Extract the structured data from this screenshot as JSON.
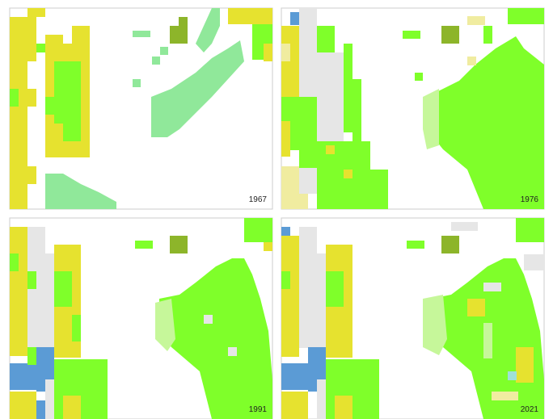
{
  "panels": [
    {
      "year": "1967"
    },
    {
      "year": "1976"
    },
    {
      "year": "1991"
    },
    {
      "year": "2021"
    }
  ]
}
